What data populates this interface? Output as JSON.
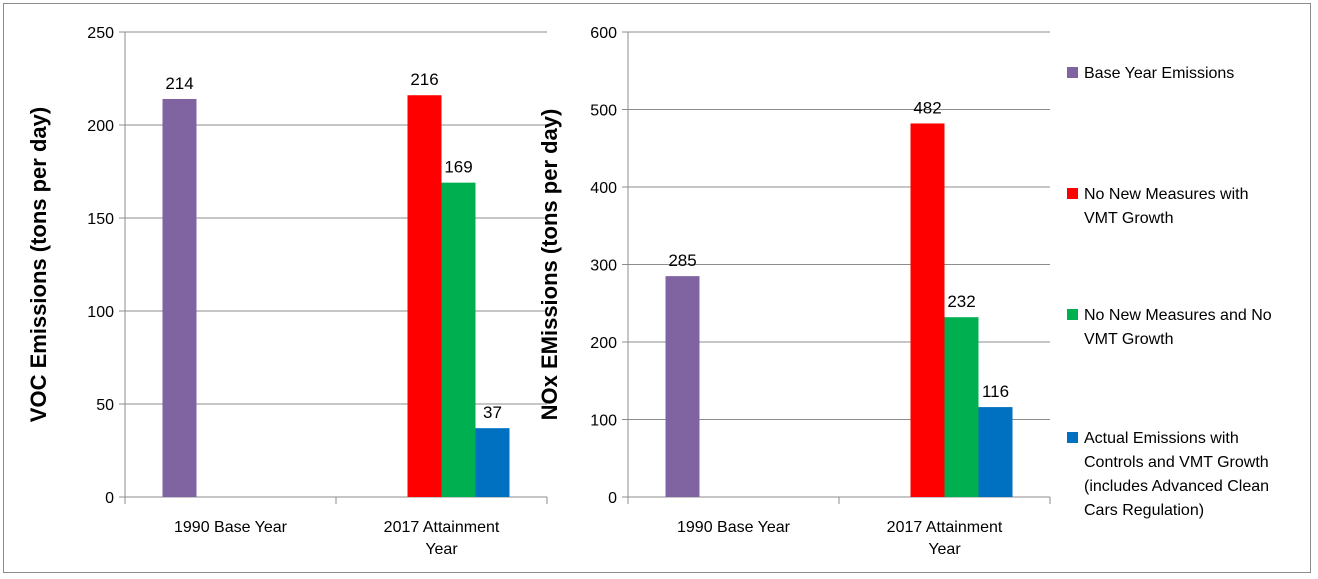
{
  "chart_data": [
    {
      "type": "bar",
      "ylabel": "VOC Emissions (tons per day)",
      "ylim": [
        0,
        250
      ],
      "yticks": [
        0,
        50,
        100,
        150,
        200,
        250
      ],
      "grid": true,
      "categories": [
        [
          "1990 Base Year"
        ],
        [
          "2017 Attainment",
          "Year"
        ]
      ],
      "series": [
        {
          "name": "Base Year Emissions",
          "color": "#8064a2",
          "values": [
            214,
            null
          ]
        },
        {
          "name": "No New Measures with VMT Growth",
          "color": "#ff0000",
          "values": [
            null,
            216
          ]
        },
        {
          "name": "No New Measures and No VMT Growth",
          "color": "#00b050",
          "values": [
            null,
            169
          ]
        },
        {
          "name": "Actual Emissions with Controls and VMT Growth (includes Advanced Clean Cars Regulation)",
          "color": "#0070c0",
          "values": [
            null,
            37
          ]
        }
      ]
    },
    {
      "type": "bar",
      "ylabel": "NOx EMissions (tons per day)",
      "ylim": [
        0,
        600
      ],
      "yticks": [
        0,
        100,
        200,
        300,
        400,
        500,
        600
      ],
      "grid": true,
      "categories": [
        [
          "1990 Base Year"
        ],
        [
          "2017 Attainment",
          "Year"
        ]
      ],
      "series": [
        {
          "name": "Base Year Emissions",
          "color": "#8064a2",
          "values": [
            285,
            null
          ]
        },
        {
          "name": "No New Measures with VMT Growth",
          "color": "#ff0000",
          "values": [
            null,
            482
          ]
        },
        {
          "name": "No New Measures and No VMT Growth",
          "color": "#00b050",
          "values": [
            null,
            232
          ]
        },
        {
          "name": "Actual Emissions with Controls and VMT Growth (includes Advanced Clean Cars Regulation)",
          "color": "#0070c0",
          "values": [
            null,
            116
          ]
        }
      ]
    }
  ],
  "legend": {
    "placement": "right",
    "items": [
      {
        "lines": [
          "Base Year Emissions"
        ],
        "color": "#8064a2"
      },
      {
        "lines": [
          "No New Measures with",
          "VMT Growth"
        ],
        "color": "#ff0000"
      },
      {
        "lines": [
          "No New Measures and No",
          "VMT Growth"
        ],
        "color": "#00b050"
      },
      {
        "lines": [
          "Actual Emissions with",
          "Controls and VMT Growth",
          "(includes Advanced Clean",
          "Cars Regulation)"
        ],
        "color": "#0070c0"
      }
    ]
  }
}
